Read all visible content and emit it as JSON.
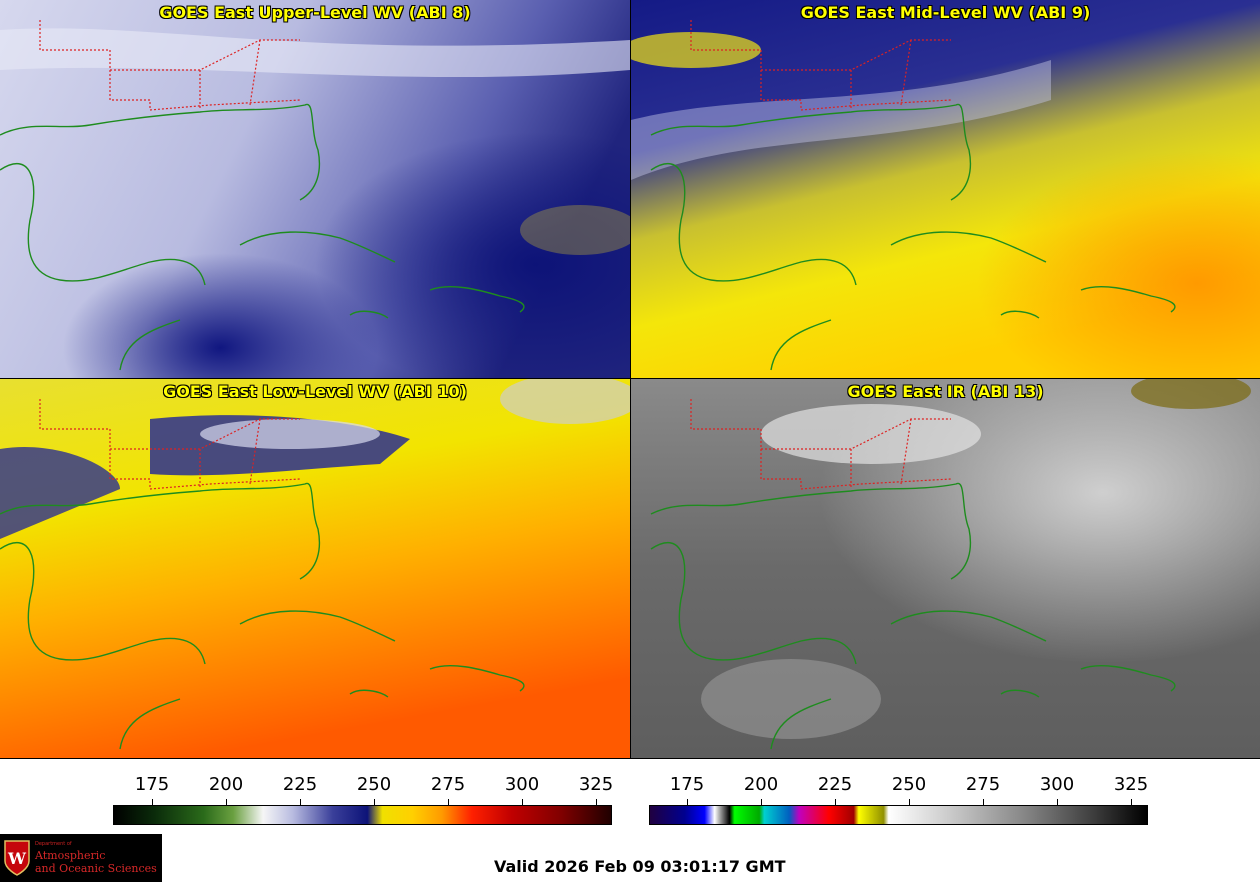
{
  "panels": {
    "upper": {
      "title": "GOES East Upper-Level WV (ABI 8)"
    },
    "mid": {
      "title": "GOES East Mid-Level WV (ABI 9)"
    },
    "low": {
      "title": "GOES East Low-Level WV (ABI 10)"
    },
    "ir": {
      "title": "GOES East IR (ABI 13)"
    }
  },
  "colorbars": {
    "wv": {
      "ticks": [
        "175",
        "200",
        "225",
        "250",
        "275",
        "300",
        "325"
      ]
    },
    "ir": {
      "ticks": [
        "175",
        "200",
        "225",
        "250",
        "275",
        "300",
        "325"
      ]
    }
  },
  "logo": {
    "dept": "Department of",
    "line1": "Atmospheric",
    "line2": "and Oceanic Sciences",
    "crest_letter": "W"
  },
  "valid_text": "Valid 2026 Feb 09 03:01:17 GMT",
  "colors": {
    "title_text": "#ffff00",
    "coastline": "#1e8c1e",
    "state_borders": "#dd2222"
  }
}
